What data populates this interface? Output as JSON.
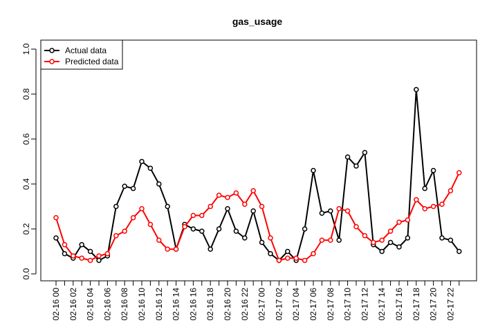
{
  "chart_data": {
    "type": "line",
    "title": "gas_usage",
    "xlabel": "",
    "ylabel": "",
    "ylim": [
      0,
      1
    ],
    "yticks": [
      0.0,
      0.2,
      0.4,
      0.6,
      0.8,
      1.0
    ],
    "ytick_labels": [
      "0.0",
      "0.2",
      "0.4",
      "0.6",
      "0.8",
      "1.0"
    ],
    "x_tick_positions": [
      0,
      2,
      4,
      6,
      8,
      10,
      12,
      14,
      16,
      18,
      20,
      22,
      24,
      26,
      28,
      30,
      32,
      34,
      36,
      38,
      40,
      42,
      44,
      46
    ],
    "x_tick_labels": [
      "02-16 00",
      "02-16 02",
      "02-16 04",
      "02-16 06",
      "02-16 08",
      "02-16 10",
      "02-16 12",
      "02-16 14",
      "02-16 16",
      "02-16 18",
      "02-16 20",
      "02-16 22",
      "02-17 00",
      "02-17 02",
      "02-17 04",
      "02-17 06",
      "02-17 08",
      "02-17 10",
      "02-17 12",
      "02-17 14",
      "02-17 16",
      "02-17 18",
      "02-17 20",
      "02-17 22"
    ],
    "legend_position": "top-left",
    "grid": false,
    "series": [
      {
        "name": "Actual data",
        "color": "#000000",
        "values": [
          0.16,
          0.09,
          0.07,
          0.13,
          0.1,
          0.06,
          0.08,
          0.3,
          0.39,
          0.38,
          0.5,
          0.47,
          0.4,
          0.3,
          0.11,
          0.22,
          0.2,
          0.19,
          0.11,
          0.2,
          0.29,
          0.19,
          0.16,
          0.28,
          0.14,
          0.09,
          0.06,
          0.1,
          0.06,
          0.2,
          0.46,
          0.27,
          0.28,
          0.15,
          0.52,
          0.48,
          0.54,
          0.13,
          0.1,
          0.14,
          0.12,
          0.16,
          0.82,
          0.38,
          0.46,
          0.16,
          0.15,
          0.1
        ]
      },
      {
        "name": "Predicted data",
        "color": "#ff0000",
        "values": [
          0.25,
          0.13,
          0.08,
          0.07,
          0.06,
          0.08,
          0.09,
          0.17,
          0.19,
          0.25,
          0.29,
          0.22,
          0.15,
          0.11,
          0.11,
          0.21,
          0.26,
          0.26,
          0.3,
          0.35,
          0.34,
          0.36,
          0.31,
          0.37,
          0.3,
          0.16,
          0.06,
          0.07,
          0.07,
          0.06,
          0.09,
          0.15,
          0.15,
          0.29,
          0.28,
          0.21,
          0.17,
          0.14,
          0.15,
          0.19,
          0.23,
          0.24,
          0.33,
          0.29,
          0.3,
          0.31,
          0.37,
          0.45
        ]
      }
    ]
  }
}
